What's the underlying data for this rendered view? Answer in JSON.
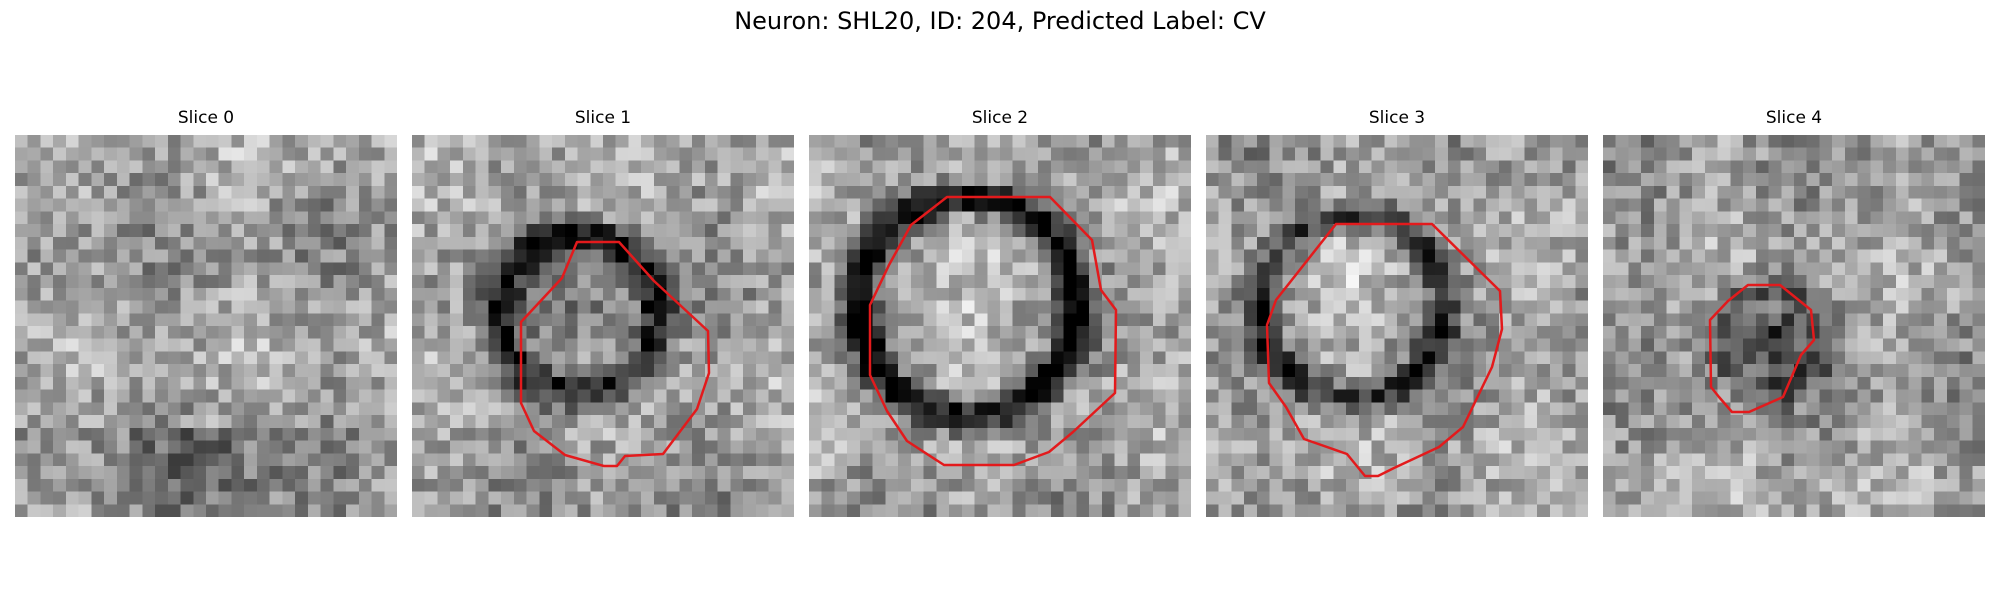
{
  "figure": {
    "title": "Neuron: SHL20, ID: 204, Predicted Label: CV"
  },
  "colors": {
    "contour": "#e31a1c",
    "colormap": "gray"
  },
  "grid_size": 30,
  "slices": [
    {
      "title": "Slice 0",
      "has_contour": false
    },
    {
      "title": "Slice 1",
      "has_contour": true
    },
    {
      "title": "Slice 2",
      "has_contour": true
    },
    {
      "title": "Slice 3",
      "has_contour": true
    },
    {
      "title": "Slice 4",
      "has_contour": true
    }
  ]
}
